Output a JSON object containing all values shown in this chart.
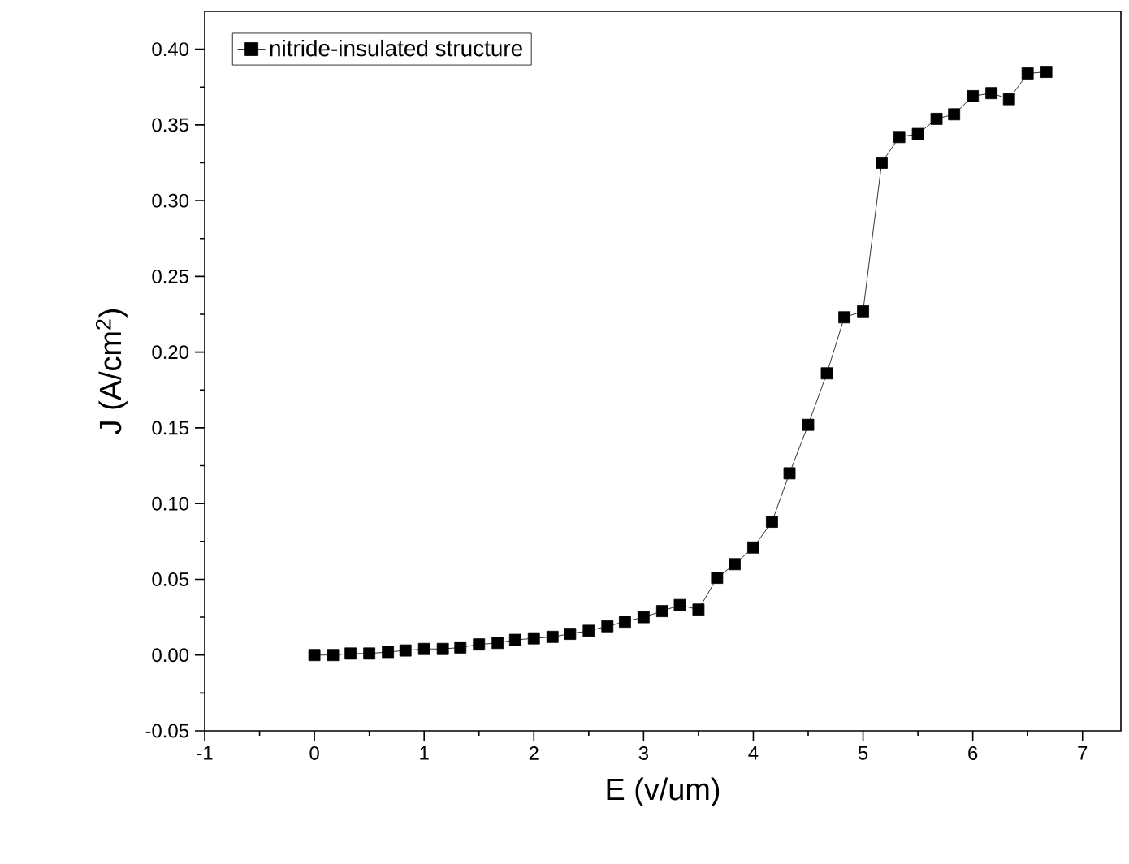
{
  "chart_data": {
    "type": "line",
    "xlabel": "E (v/um)",
    "ylabel": "J (A/cm$^{2}$)",
    "xlim": [
      -1,
      7.35
    ],
    "ylim": [
      -0.05,
      0.425
    ],
    "xticks": [
      -1,
      0,
      1,
      2,
      3,
      4,
      5,
      6,
      7
    ],
    "yticks": [
      {
        "value": -0.05,
        "label": "-0.05"
      },
      {
        "value": 0,
        "label": "0.00"
      },
      {
        "value": 0.05,
        "label": "0.05"
      },
      {
        "value": 0.1,
        "label": "0.10"
      },
      {
        "value": 0.15,
        "label": "0.15"
      },
      {
        "value": 0.2,
        "label": "0.20"
      },
      {
        "value": 0.25,
        "label": "0.25"
      },
      {
        "value": 0.3,
        "label": "0.30"
      },
      {
        "value": 0.35,
        "label": "0.35"
      },
      {
        "value": 0.4,
        "label": "0.40"
      }
    ],
    "grid": false,
    "legend": "top left",
    "marker": "square",
    "line_style": "solid",
    "series": [
      {
        "name": "nitride-insulated structure",
        "color": "#000000",
        "x": [
          0,
          0.17,
          0.33,
          0.5,
          0.67,
          0.83,
          1,
          1.17,
          1.33,
          1.5,
          1.67,
          1.83,
          2,
          2.17,
          2.33,
          2.5,
          2.67,
          2.83,
          3,
          3.17,
          3.33,
          3.5,
          3.67,
          3.83,
          4,
          4.17,
          4.33,
          4.5,
          4.67,
          4.83,
          5,
          5.17,
          5.33,
          5.5,
          5.67,
          5.83,
          6,
          6.17,
          6.33,
          6.5,
          6.67
        ],
        "values": [
          0.0,
          0.0,
          0.001,
          0.001,
          0.002,
          0.003,
          0.004,
          0.004,
          0.005,
          0.007,
          0.008,
          0.01,
          0.011,
          0.012,
          0.014,
          0.016,
          0.019,
          0.022,
          0.025,
          0.029,
          0.033,
          0.03,
          0.051,
          0.06,
          0.071,
          0.088,
          0.12,
          0.152,
          0.186,
          0.223,
          0.227,
          0.325,
          0.342,
          0.344,
          0.354,
          0.357,
          0.369,
          0.371,
          0.367,
          0.384,
          0.385
        ]
      }
    ]
  }
}
